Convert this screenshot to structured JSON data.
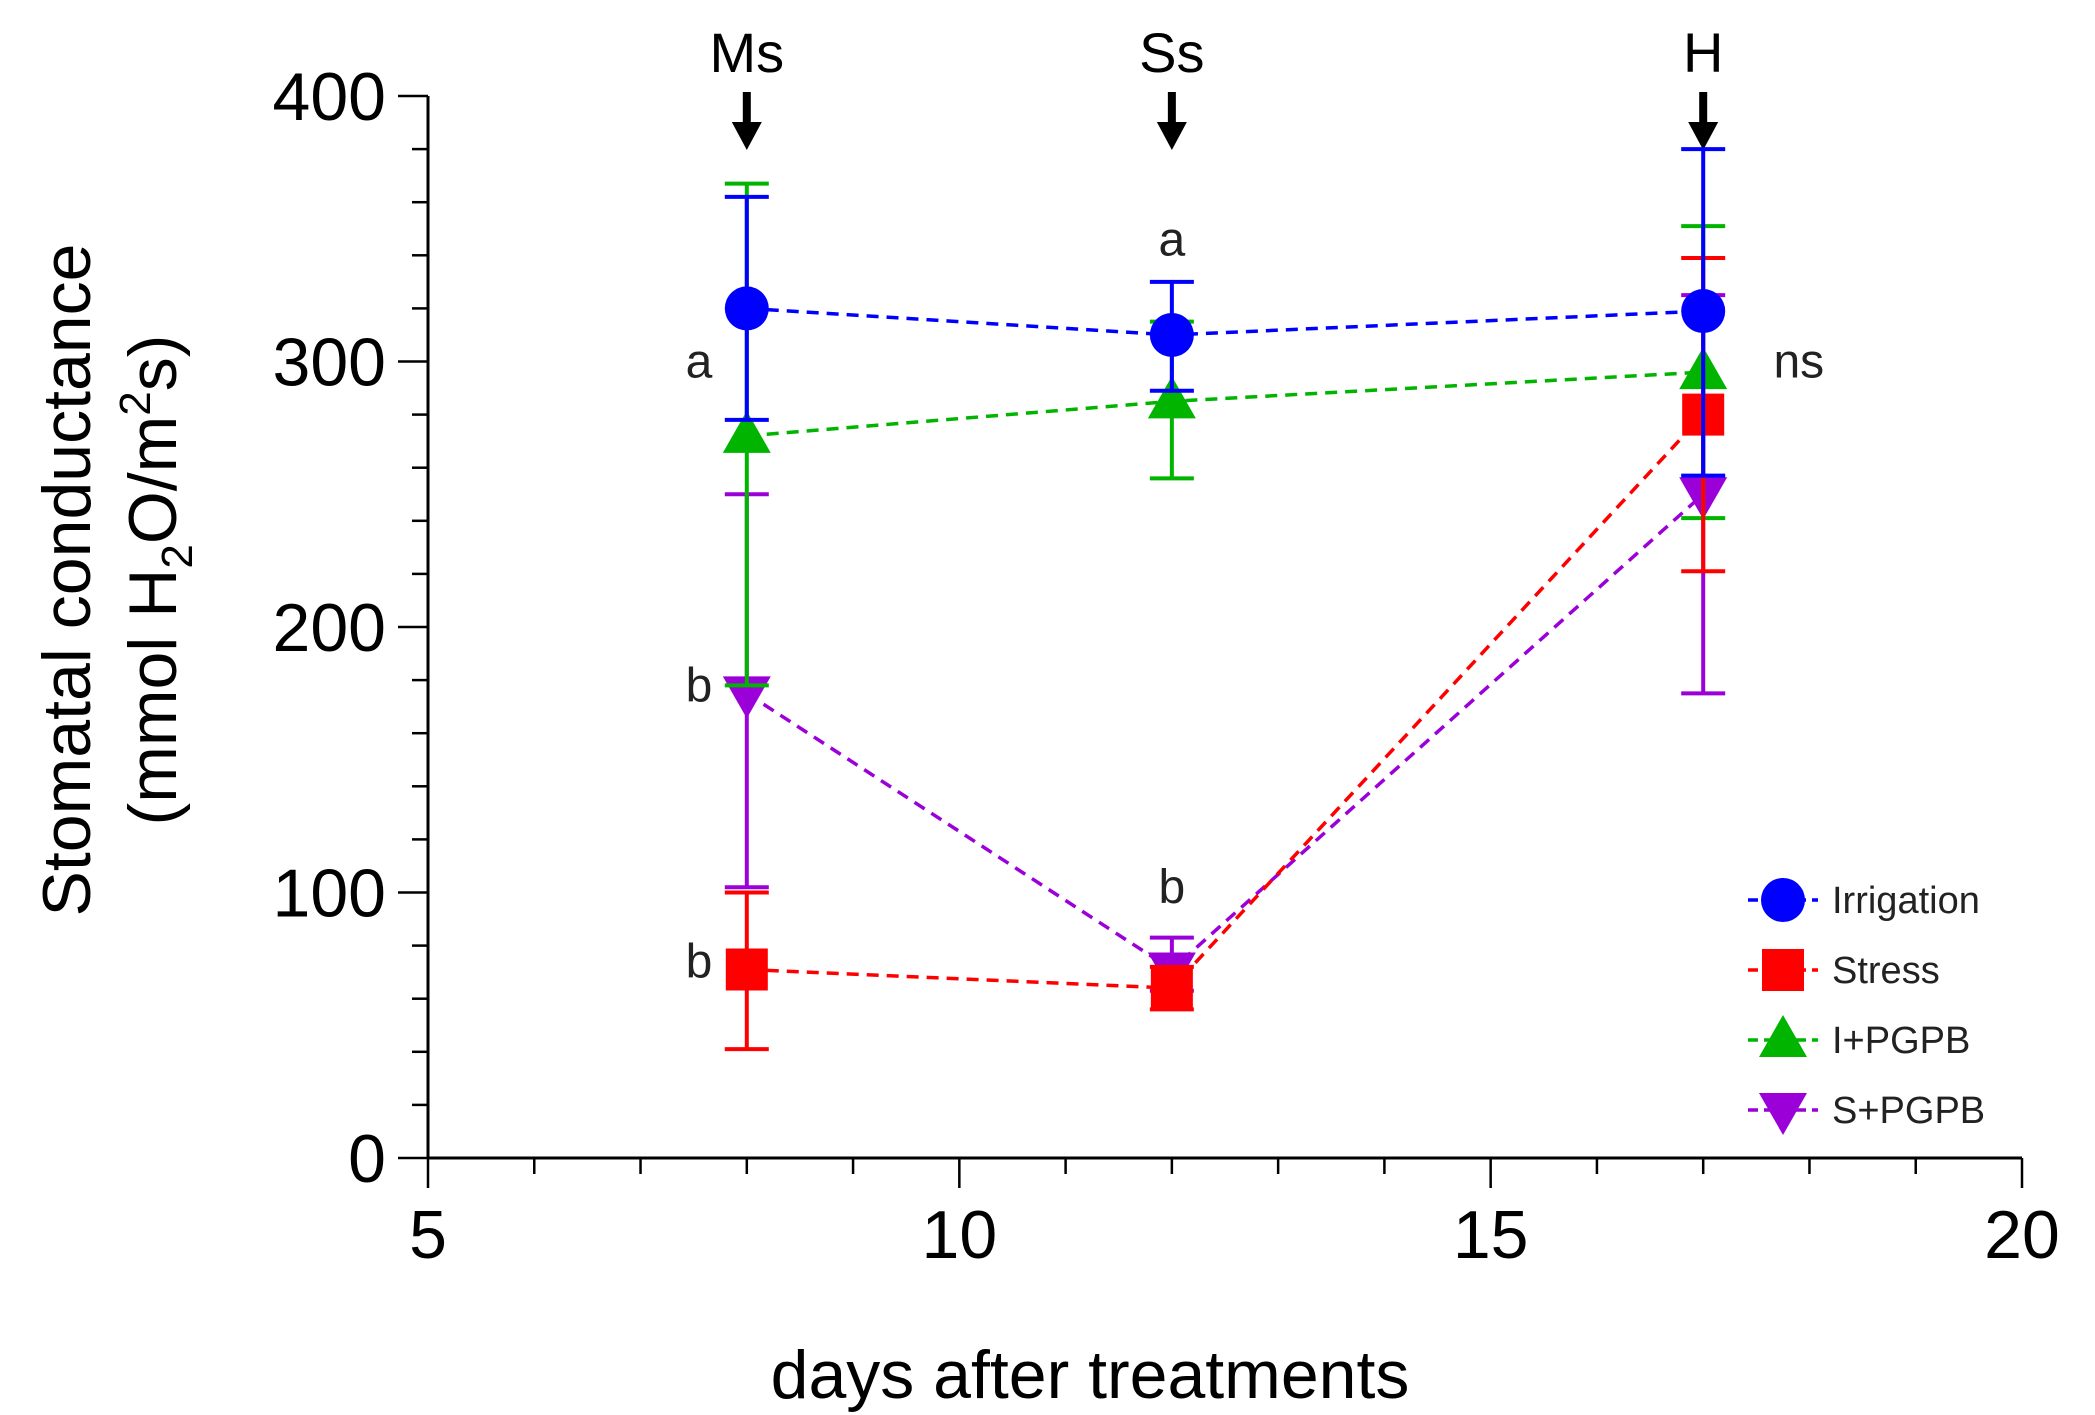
{
  "chart_data": {
    "type": "line",
    "xlabel": "days after treatments",
    "ylabel_line1": "Stomatal conductance",
    "ylabel_line2_parts": [
      "(mmol H",
      "2",
      "O/m",
      "2",
      "s)"
    ],
    "xlim": [
      5,
      20
    ],
    "ylim": [
      0,
      400
    ],
    "x_ticks": [
      5,
      10,
      15,
      20
    ],
    "y_ticks": [
      0,
      100,
      200,
      300,
      400
    ],
    "x_minor_step": 1,
    "y_minor_step": 20,
    "events": [
      {
        "label": "Ms",
        "x": 8
      },
      {
        "label": "Ss",
        "x": 12
      },
      {
        "label": "H",
        "x": 17
      }
    ],
    "series": [
      {
        "name": "Irrigation",
        "color": "#0000FF",
        "marker": "circle",
        "x": [
          8,
          12,
          17
        ],
        "y": [
          320,
          310,
          319
        ],
        "err_low": [
          278,
          289,
          257
        ],
        "err_high": [
          362,
          330,
          380
        ]
      },
      {
        "name": "Stress",
        "color": "#FF0000",
        "marker": "square",
        "x": [
          8,
          12,
          17
        ],
        "y": [
          71,
          64,
          280
        ],
        "err_low": [
          41,
          56,
          221
        ],
        "err_high": [
          100,
          72,
          339
        ]
      },
      {
        "name": "I+PGPB",
        "color": "#00B400",
        "marker": "triangle-up",
        "x": [
          8,
          12,
          17
        ],
        "y": [
          272,
          285,
          296
        ],
        "err_low": [
          178,
          256,
          241
        ],
        "err_high": [
          367,
          315,
          351
        ]
      },
      {
        "name": "S+PGPB",
        "color": "#9B00D9",
        "marker": "triangle-down",
        "x": [
          8,
          12,
          17
        ],
        "y": [
          175,
          71,
          250
        ],
        "err_low": [
          102,
          63,
          175
        ],
        "err_high": [
          250,
          83,
          325
        ]
      }
    ],
    "annotations": [
      {
        "text": "a",
        "x": 7.55,
        "y": 294
      },
      {
        "text": "b",
        "x": 7.55,
        "y": 172
      },
      {
        "text": "b",
        "x": 7.55,
        "y": 68
      },
      {
        "text": "a",
        "x": 12,
        "y": 340
      },
      {
        "text": "b",
        "x": 12,
        "y": 96
      },
      {
        "text": "ns",
        "x": 17.9,
        "y": 294
      }
    ],
    "legend": {
      "position": "bottom-right",
      "entries": [
        "Irrigation",
        "Stress",
        "I+PGPB",
        "S+PGPB"
      ]
    }
  }
}
